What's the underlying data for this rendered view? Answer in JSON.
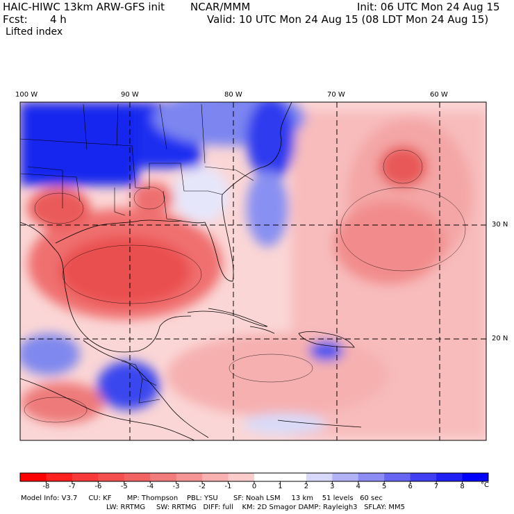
{
  "header": {
    "title": "HAIC-HIWC 13km ARW-GFS init",
    "center": "NCAR/MMM",
    "init": "Init: 06 UTC Mon 24 Aug 15",
    "fcst_label": "Fcst:",
    "fcst_value": "4 h",
    "valid": "Valid: 10 UTC Mon 24 Aug 15 (08 LDT Mon 24 Aug 15)",
    "field": "Lifted index"
  },
  "map": {
    "lon_labels": [
      "100 W",
      "90 W",
      "80 W",
      "70 W",
      "60 W"
    ],
    "lat_labels": [
      "30 N",
      "20 N"
    ],
    "colors": {
      "warm": "#f4a0a0",
      "warm_strong": "#e84848",
      "cool": "#6a74ee",
      "cool_strong": "#0c14ee",
      "neutral": "#fbe4e4"
    }
  },
  "colorbar": {
    "labels": [
      "-8",
      "-7",
      "-6",
      "-5",
      "-4",
      "-3",
      "-2",
      "-1",
      "0",
      "1",
      "2",
      "3",
      "4",
      "5",
      "6",
      "7",
      "8"
    ],
    "unit": "°C",
    "colors": [
      "#ff0000",
      "#ff2020",
      "#f83a3a",
      "#f45050",
      "#f26464",
      "#f27c7c",
      "#f49494",
      "#f8b0b0",
      "#fccccc",
      "#ffffff",
      "#ffffff",
      "#d8d8fa",
      "#b2b2f6",
      "#8c8cf4",
      "#6666f2",
      "#4040f2",
      "#2020f4",
      "#0000ff"
    ]
  },
  "model_info": {
    "line1": "Model Info: V3.7     CU: KF       MP: Thompson    PBL: YSU       SF: Noah LSM     13 km    51 levels   60 sec",
    "line2": "LW: RRTMG     SW: RRTMG   DIFF: full    KM: 2D Smagor DAMP: Rayleigh3   SFLAY: MM5"
  }
}
